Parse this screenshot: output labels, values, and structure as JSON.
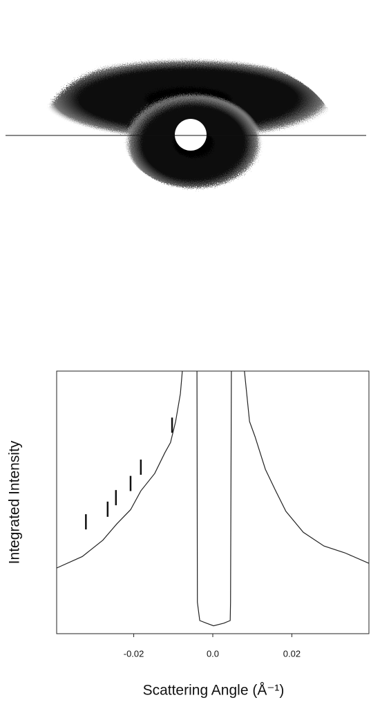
{
  "chart_data": {
    "type": "line",
    "xlabel": "Scattering Angle (Å⁻¹)",
    "ylabel": "Integrated Intensity",
    "xlim": [
      -0.0395,
      0.0395
    ],
    "ylim": [
      0,
      5
    ],
    "xticks": [
      -0.02,
      {
        "value": 0,
        "label": "0.0"
      },
      0.02
    ],
    "color": "#222222",
    "x": [
      -0.0395,
      -0.033,
      -0.0278,
      -0.0243,
      -0.0208,
      -0.0182,
      -0.0147,
      -0.0121,
      -0.0107,
      -0.0094,
      -0.0082,
      -0.0077,
      null,
      -0.004,
      -0.0039,
      -0.0033,
      -0.0016,
      0.0002,
      0.0028,
      0.0044,
      0.0045,
      0.0047,
      null,
      0.008,
      0.0093,
      0.0107,
      0.0133,
      0.0159,
      0.0185,
      0.0229,
      0.0281,
      0.0334,
      0.0395
    ],
    "values": [
      1.25,
      1.47,
      1.78,
      2.09,
      2.36,
      2.72,
      3.05,
      3.45,
      3.64,
      4.04,
      4.57,
      5,
      null,
      5,
      0.6,
      0.25,
      0.2,
      0.15,
      0.2,
      0.25,
      0.6,
      5,
      null,
      5,
      4.04,
      3.75,
      3.13,
      2.72,
      2.33,
      1.93,
      1.67,
      1.54,
      1.34
    ],
    "markers": [
      {
        "x": -0.0321,
        "y": 2.13
      },
      {
        "x": -0.0266,
        "y": 2.37
      },
      {
        "x": -0.0245,
        "y": 2.59
      },
      {
        "x": -0.0208,
        "y": 2.86
      },
      {
        "x": -0.0182,
        "y": 3.17
      },
      {
        "x": -0.0103,
        "y": 3.97
      }
    ]
  }
}
